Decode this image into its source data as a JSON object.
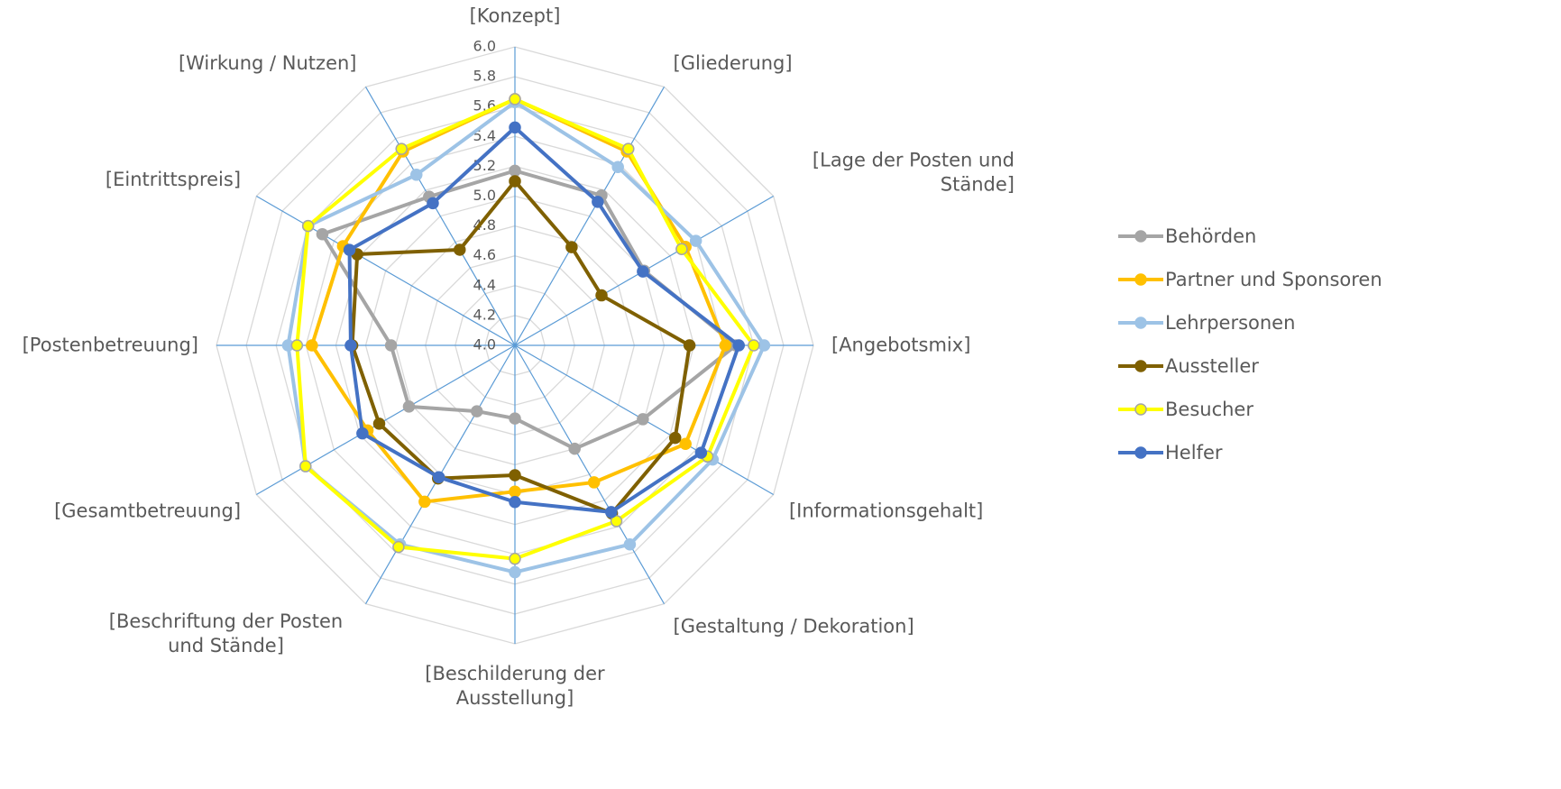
{
  "chart_data": {
    "type": "radar",
    "categories": [
      "[Konzept]",
      "[Gliederung]",
      "[Lage der Posten und Stände]",
      "[Angebotsmix]",
      "[Informationsgehalt]",
      "[Gestaltung / Dekoration]",
      "[Beschilderung der Ausstellung]",
      "[Beschriftung der Posten und Stände]",
      "[Gesamtbetreuung]",
      "[Postenbetreuung]",
      "[Eintrittspreis]",
      "[Wirkung / Nutzen]"
    ],
    "series": [
      {
        "name": "Behörden",
        "color": "#a5a5a5",
        "values": [
          5.17,
          5.16,
          5.0,
          5.48,
          4.99,
          4.8,
          4.49,
          4.51,
          4.82,
          4.83,
          5.49,
          5.15
        ]
      },
      {
        "name": "Partner und Sponsoren",
        "color": "#ffc000",
        "values": [
          5.65,
          5.5,
          5.32,
          5.41,
          5.32,
          5.06,
          4.98,
          5.21,
          5.14,
          5.36,
          5.33,
          5.5
        ]
      },
      {
        "name": "Lehrpersonen",
        "color": "#9dc3e6",
        "values": [
          5.63,
          5.38,
          5.4,
          5.67,
          5.53,
          5.54,
          5.52,
          5.54,
          5.62,
          5.52,
          5.6,
          5.32
        ]
      },
      {
        "name": "Aussteller",
        "color": "#7f6000",
        "values": [
          5.1,
          4.76,
          4.67,
          5.17,
          5.24,
          5.3,
          4.87,
          5.03,
          5.05,
          5.09,
          5.22,
          4.74
        ]
      },
      {
        "name": "Besucher",
        "color": "#ffff00",
        "marker_edge": "#a5a5a5",
        "values": [
          5.65,
          5.52,
          5.29,
          5.6,
          5.49,
          5.36,
          5.43,
          5.56,
          5.62,
          5.46,
          5.6,
          5.52
        ]
      },
      {
        "name": "Helfer",
        "color": "#4472c4",
        "values": [
          5.46,
          5.11,
          4.99,
          5.5,
          5.44,
          5.29,
          5.05,
          5.02,
          5.18,
          5.1,
          5.28,
          5.1
        ]
      }
    ],
    "ylim": [
      4,
      6
    ],
    "yticks": [
      {
        "value": 4,
        "label": "4.0"
      },
      4.2,
      4.4,
      4.6,
      4.8,
      {
        "value": 5,
        "label": "5.0"
      },
      5.2,
      5.4,
      5.6,
      5.8,
      {
        "value": 6,
        "label": "6.0"
      }
    ],
    "grid": true,
    "legend": "right"
  }
}
